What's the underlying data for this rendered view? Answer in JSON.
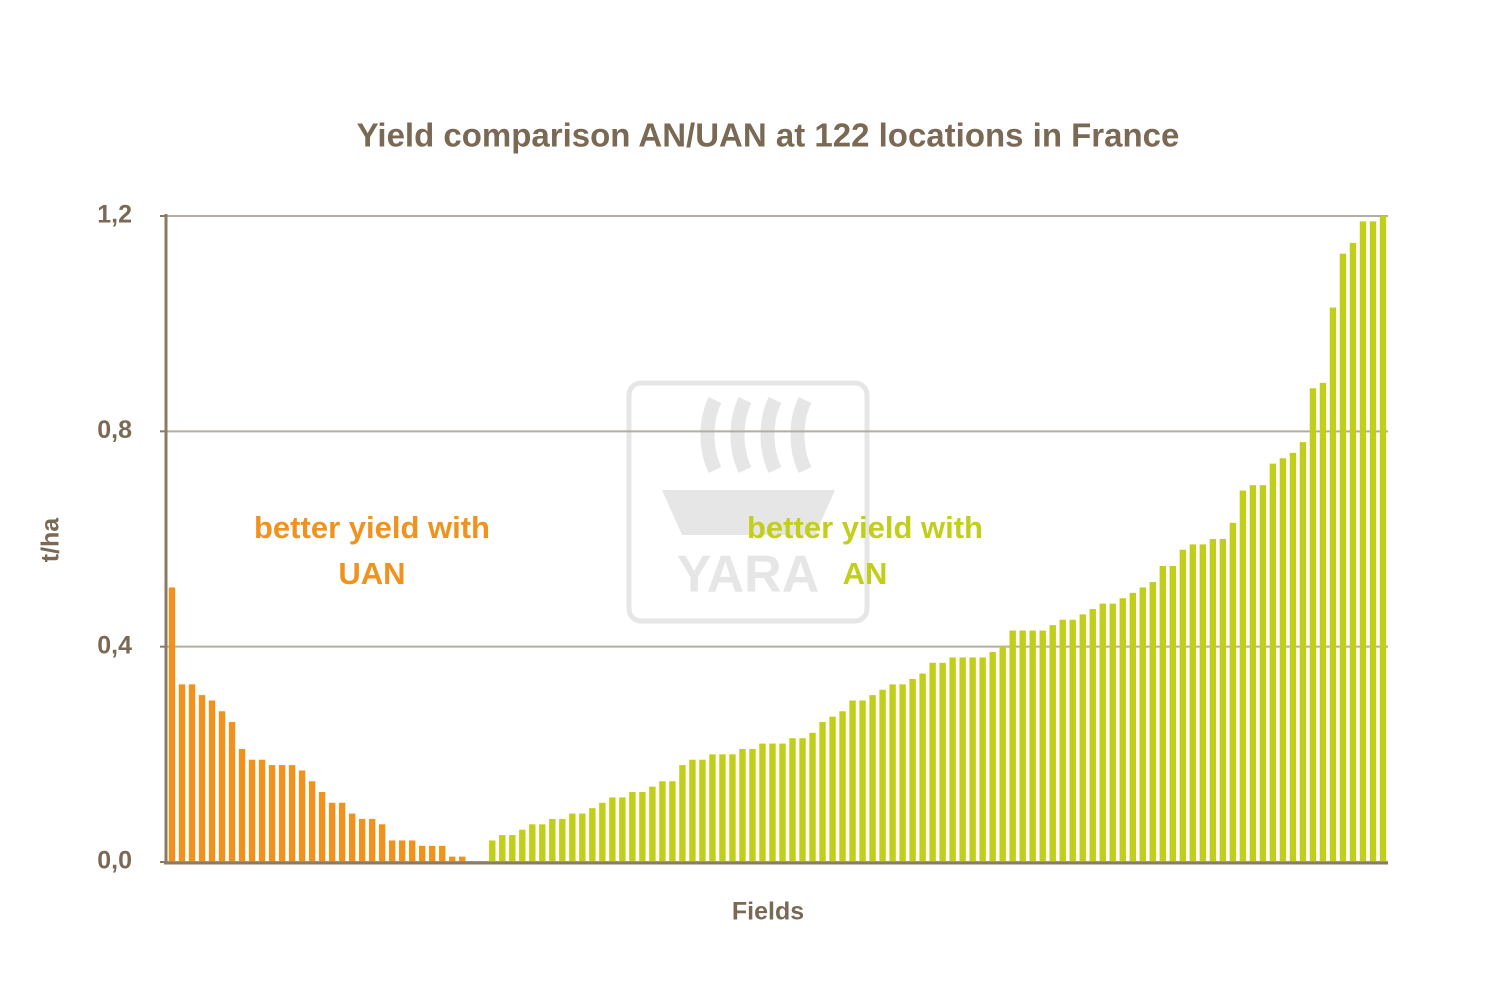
{
  "chart_data": {
    "type": "bar",
    "title": "Yield comparison AN/UAN at 122 locations in France",
    "x_label": "Fields",
    "y_label": "t/ha",
    "watermark": "YARA",
    "ylim": [
      0,
      1.2
    ],
    "yticks": [
      {
        "value": 0,
        "label": "0,0"
      },
      {
        "value": 0.4,
        "label": "0,4"
      },
      {
        "value": 0.8,
        "label": "0,8"
      },
      {
        "value": 1.2,
        "label": "1,2"
      }
    ],
    "grid": true,
    "series": [
      {
        "name": "better yield with UAN",
        "color": "#f0921e",
        "values": [
          0.51,
          0.33,
          0.33,
          0.31,
          0.3,
          0.28,
          0.26,
          0.21,
          0.19,
          0.19,
          0.18,
          0.18,
          0.18,
          0.17,
          0.15,
          0.13,
          0.11,
          0.11,
          0.09,
          0.08,
          0.08,
          0.07,
          0.04,
          0.04,
          0.04,
          0.03,
          0.03,
          0.03,
          0.01,
          0.01,
          0.0,
          null,
          null,
          null,
          null,
          null,
          null,
          null,
          null,
          null,
          null,
          null,
          null,
          null,
          null,
          null,
          null,
          null,
          null,
          null,
          null,
          null,
          null,
          null,
          null,
          null,
          null,
          null,
          null,
          null,
          null,
          null,
          null,
          null,
          null,
          null,
          null,
          null,
          null,
          null,
          null,
          null,
          null,
          null,
          null,
          null,
          null,
          null,
          null,
          null,
          null,
          null,
          null,
          null,
          null,
          null,
          null,
          null,
          null,
          null,
          null,
          null,
          null,
          null,
          null,
          null,
          null,
          null,
          null,
          null,
          null,
          null,
          null,
          null,
          null,
          null,
          null,
          null,
          null,
          null,
          null,
          null,
          null,
          null,
          null,
          null,
          null,
          null,
          null,
          null,
          null,
          null
        ]
      },
      {
        "name": "better yield with AN",
        "color": "#c2cf1a",
        "values": [
          null,
          null,
          null,
          null,
          null,
          null,
          null,
          null,
          null,
          null,
          null,
          null,
          null,
          null,
          null,
          null,
          null,
          null,
          null,
          null,
          null,
          null,
          null,
          null,
          null,
          null,
          null,
          null,
          null,
          null,
          null,
          0.0,
          0.04,
          0.05,
          0.05,
          0.06,
          0.07,
          0.07,
          0.08,
          0.08,
          0.09,
          0.09,
          0.1,
          0.11,
          0.12,
          0.12,
          0.13,
          0.13,
          0.14,
          0.15,
          0.15,
          0.18,
          0.19,
          0.19,
          0.2,
          0.2,
          0.2,
          0.21,
          0.21,
          0.22,
          0.22,
          0.22,
          0.23,
          0.23,
          0.24,
          0.26,
          0.27,
          0.28,
          0.3,
          0.3,
          0.31,
          0.32,
          0.33,
          0.33,
          0.34,
          0.35,
          0.37,
          0.37,
          0.38,
          0.38,
          0.38,
          0.38,
          0.39,
          0.4,
          0.43,
          0.43,
          0.43,
          0.43,
          0.44,
          0.45,
          0.45,
          0.46,
          0.47,
          0.48,
          0.48,
          0.49,
          0.5,
          0.51,
          0.52,
          0.55,
          0.55,
          0.58,
          0.59,
          0.59,
          0.6,
          0.6,
          0.63,
          0.69,
          0.7,
          0.7,
          0.74,
          0.75,
          0.76,
          0.78,
          0.88,
          0.89,
          1.03,
          1.13,
          1.15,
          1.19,
          1.19,
          1.2
        ]
      }
    ]
  }
}
